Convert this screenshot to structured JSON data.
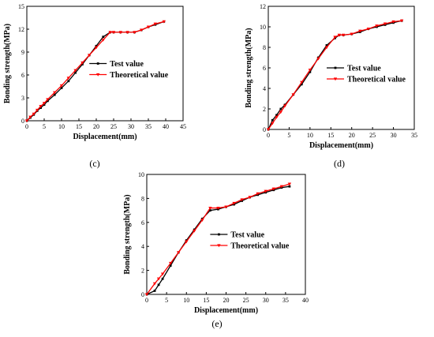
{
  "chart_data": [
    {
      "type": "line",
      "panel_label": "(c)",
      "xlabel": "Displacement(mm)",
      "ylabel": "Bonding strength(MPa)",
      "xlim": [
        0,
        45
      ],
      "ylim": [
        0,
        15
      ],
      "xticks": [
        "0",
        "5",
        "10",
        "15",
        "20",
        "25",
        "30",
        "35",
        "40",
        "45"
      ],
      "yticks": [
        "0",
        "3",
        "6",
        "9",
        "12",
        "15"
      ],
      "legend_position": "center-right",
      "series": [
        {
          "name": "Test value",
          "color": "#000000",
          "marker": "square",
          "x": [
            0,
            1,
            2,
            3,
            4,
            5,
            6,
            8,
            10,
            12,
            14,
            16,
            18,
            20,
            22,
            24,
            25,
            27,
            29,
            31,
            33,
            35,
            37,
            39.5
          ],
          "y": [
            0,
            0.4,
            0.8,
            1.3,
            1.7,
            2.1,
            2.6,
            3.4,
            4.3,
            5.2,
            6.3,
            7.4,
            8.6,
            9.8,
            11.0,
            11.6,
            11.6,
            11.6,
            11.6,
            11.6,
            11.9,
            12.3,
            12.6,
            13.0
          ]
        },
        {
          "name": "Theoretical value",
          "color": "#ff0000",
          "marker": "triangle-down",
          "x": [
            0,
            1,
            2,
            3,
            4,
            5,
            6,
            8,
            10,
            12,
            14,
            16,
            18,
            20,
            22,
            24,
            25,
            27,
            29,
            31,
            33,
            35,
            37,
            39.5
          ],
          "y": [
            0,
            0.5,
            0.9,
            1.4,
            1.9,
            2.3,
            2.8,
            3.7,
            4.6,
            5.6,
            6.6,
            7.6,
            8.6,
            9.6,
            10.6,
            11.6,
            11.6,
            11.6,
            11.6,
            11.6,
            11.9,
            12.3,
            12.7,
            13.0
          ]
        }
      ]
    },
    {
      "type": "line",
      "panel_label": "(d)",
      "xlabel": "Displacement(mm)",
      "ylabel": "Bonding strength(MPa)",
      "xlim": [
        0,
        35
      ],
      "ylim": [
        0,
        12
      ],
      "xticks": [
        "0",
        "5",
        "10",
        "15",
        "20",
        "25",
        "30",
        "35"
      ],
      "yticks": [
        "0",
        "2",
        "4",
        "6",
        "8",
        "10",
        "12"
      ],
      "legend_position": "center-right",
      "series": [
        {
          "name": "Test value",
          "color": "#000000",
          "marker": "square",
          "x": [
            0,
            1,
            2,
            3,
            4,
            6,
            8,
            10,
            12,
            14,
            16,
            17,
            18,
            20,
            22,
            24,
            26,
            28,
            30,
            32
          ],
          "y": [
            0,
            0.9,
            1.4,
            2.0,
            2.4,
            3.4,
            4.4,
            5.6,
            7.0,
            8.2,
            8.9,
            9.2,
            9.2,
            9.3,
            9.5,
            9.8,
            10.0,
            10.2,
            10.4,
            10.6
          ]
        },
        {
          "name": "Theoretical value",
          "color": "#ff0000",
          "marker": "triangle-down",
          "x": [
            0,
            1,
            2,
            3,
            4,
            6,
            8,
            10,
            12,
            14,
            16,
            17,
            18,
            20,
            22,
            24,
            26,
            28,
            30,
            32
          ],
          "y": [
            0,
            0.6,
            1.2,
            1.7,
            2.3,
            3.4,
            4.6,
            5.8,
            6.9,
            8.0,
            9.0,
            9.2,
            9.2,
            9.3,
            9.6,
            9.8,
            10.1,
            10.3,
            10.5,
            10.6
          ]
        }
      ]
    },
    {
      "type": "line",
      "panel_label": "(e)",
      "xlabel": "Displacement(mm)",
      "ylabel": "Bonding strength(MPa)",
      "xlim": [
        0,
        40
      ],
      "ylim": [
        0,
        10
      ],
      "xticks": [
        "0",
        "5",
        "10",
        "15",
        "20",
        "25",
        "30",
        "35",
        "40"
      ],
      "yticks": [
        "0",
        "2",
        "4",
        "6",
        "8",
        "10"
      ],
      "legend_position": "center-right",
      "series": [
        {
          "name": "Test value",
          "color": "#000000",
          "marker": "square",
          "x": [
            0,
            2,
            3,
            4,
            6,
            8,
            10,
            12,
            14,
            16,
            18,
            20,
            22,
            24,
            26,
            28,
            30,
            32,
            34,
            36
          ],
          "y": [
            0,
            0.3,
            0.8,
            1.3,
            2.4,
            3.5,
            4.5,
            5.4,
            6.3,
            7.0,
            7.1,
            7.3,
            7.5,
            7.8,
            8.1,
            8.3,
            8.5,
            8.7,
            8.9,
            9.0
          ]
        },
        {
          "name": "Theoretical value",
          "color": "#ff0000",
          "marker": "triangle-down",
          "x": [
            0,
            2,
            3,
            4,
            6,
            8,
            10,
            12,
            14,
            16,
            18,
            20,
            22,
            24,
            26,
            28,
            30,
            32,
            34,
            36
          ],
          "y": [
            0,
            0.9,
            1.3,
            1.7,
            2.6,
            3.5,
            4.4,
            5.3,
            6.2,
            7.2,
            7.2,
            7.3,
            7.6,
            7.9,
            8.1,
            8.4,
            8.6,
            8.8,
            9.0,
            9.2
          ]
        }
      ]
    }
  ]
}
